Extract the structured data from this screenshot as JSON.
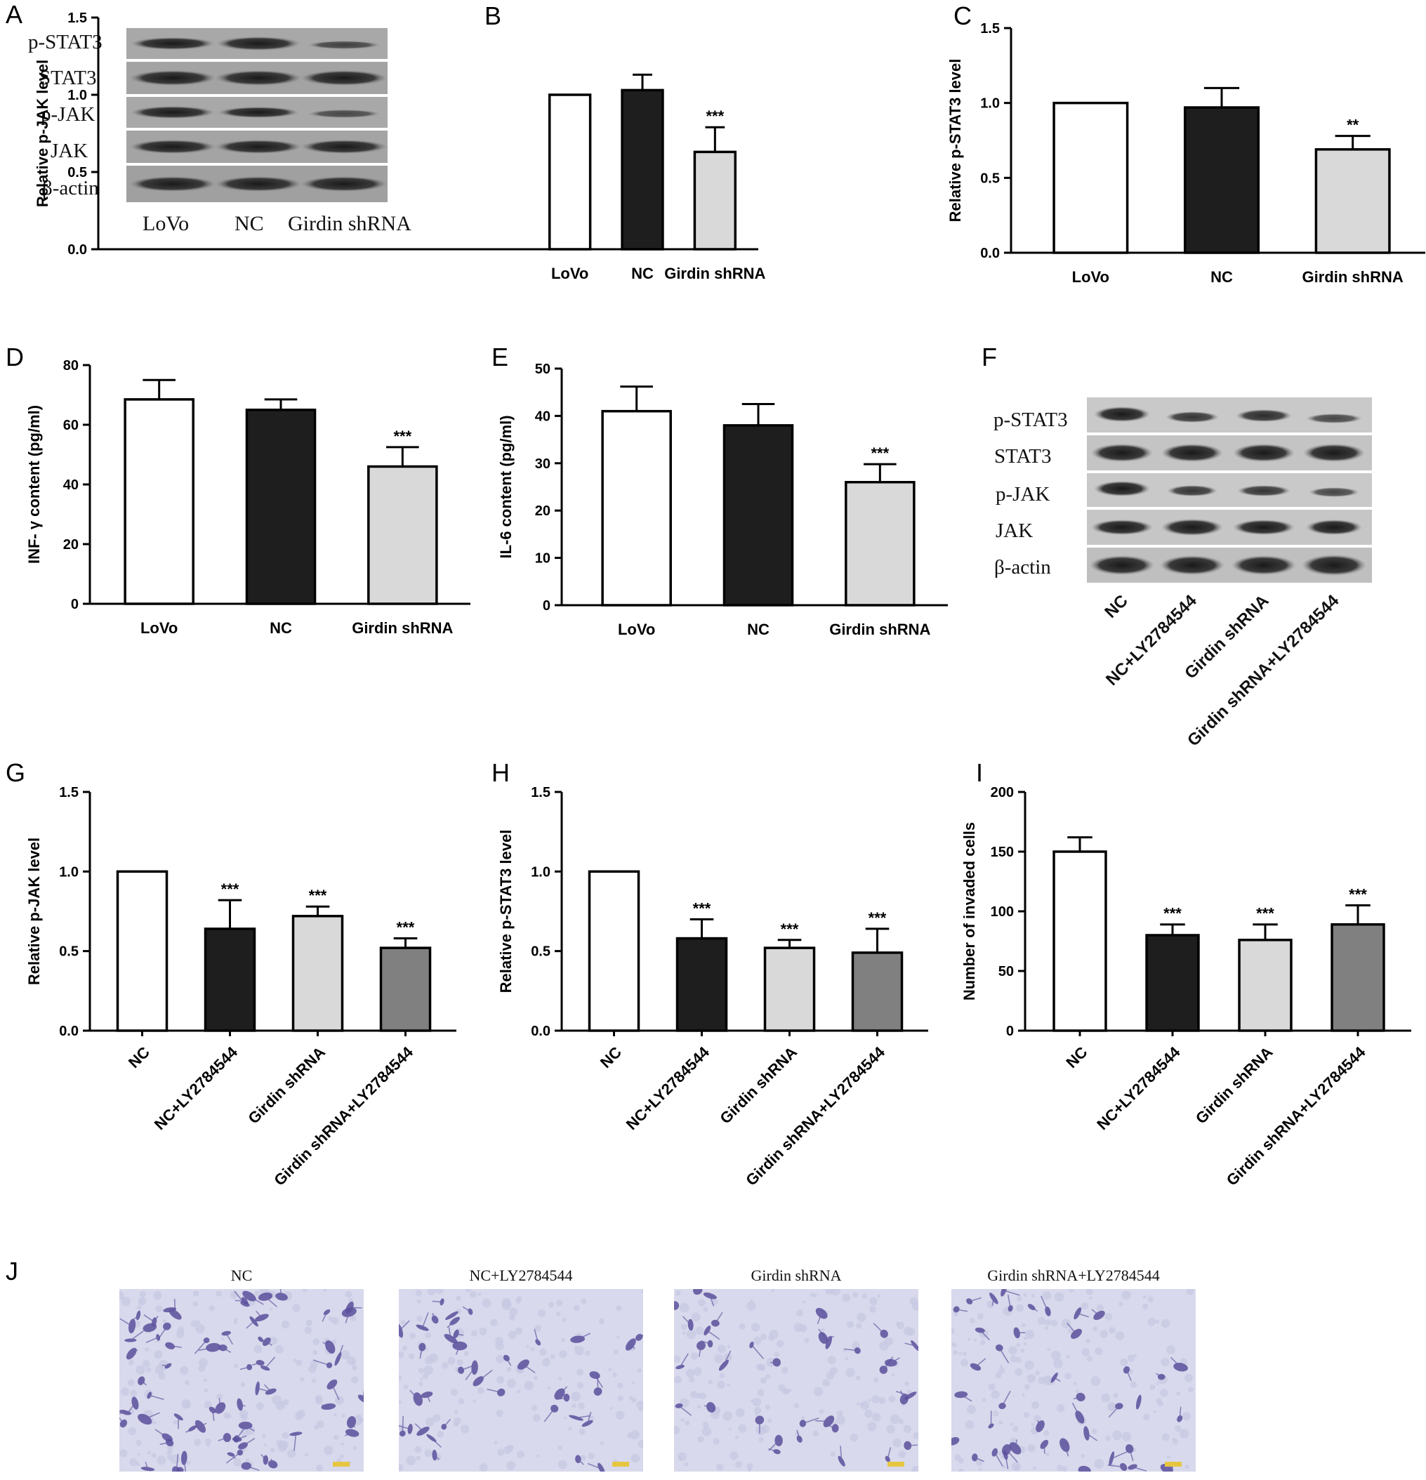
{
  "panels": {
    "A": "A",
    "B": "B",
    "C": "C",
    "D": "D",
    "E": "E",
    "F": "F",
    "G": "G",
    "H": "H",
    "I": "I",
    "J": "J"
  },
  "blot_A": {
    "rows": [
      "p-STAT3",
      "STAT3",
      "p-JAK",
      "JAK",
      "β-actin"
    ],
    "lanes": [
      "LoVo",
      "NC",
      "Girdin shRNA"
    ]
  },
  "blot_F": {
    "rows": [
      "p-STAT3",
      "STAT3",
      "p-JAK",
      "JAK",
      "β-actin"
    ],
    "lanes": [
      "NC",
      "NC+LY2784544",
      "Girdin shRNA",
      "Girdin shRNA+LY2784544"
    ]
  },
  "colors": {
    "white": "#ffffff",
    "black": "#1e1e1e",
    "light_gray": "#d9d9d9",
    "mid_gray": "#808080"
  },
  "chart_data": [
    {
      "id": "B",
      "type": "bar",
      "ylabel": "Relative p-JAK level",
      "ylim": [
        0,
        1.5
      ],
      "yticks": [
        "0.0",
        "0.5",
        "1.0",
        "1.5"
      ],
      "categories": [
        "LoVo",
        "NC",
        "Girdin shRNA"
      ],
      "values": [
        1.0,
        1.03,
        0.63
      ],
      "errors": [
        0,
        0.1,
        0.16
      ],
      "colors": [
        "#ffffff",
        "#1e1e1e",
        "#d9d9d9"
      ],
      "stars": [
        "",
        "",
        "***"
      ]
    },
    {
      "id": "C",
      "type": "bar",
      "ylabel": "Relative p-STAT3 level",
      "ylim": [
        0,
        1.5
      ],
      "yticks": [
        "0.0",
        "0.5",
        "1.0",
        "1.5"
      ],
      "categories": [
        "LoVo",
        "NC",
        "Girdin shRNA"
      ],
      "values": [
        1.0,
        0.97,
        0.69
      ],
      "errors": [
        0,
        0.13,
        0.09
      ],
      "colors": [
        "#ffffff",
        "#1e1e1e",
        "#d9d9d9"
      ],
      "stars": [
        "",
        "",
        "**"
      ]
    },
    {
      "id": "D",
      "type": "bar",
      "ylabel": "INF- γ  content (pg/ml)",
      "ylim": [
        0,
        80
      ],
      "yticks": [
        "0",
        "20",
        "40",
        "60",
        "80"
      ],
      "categories": [
        "LoVo",
        "NC",
        "Girdin  shRNA"
      ],
      "values": [
        68.5,
        65,
        46
      ],
      "errors": [
        6.5,
        3.5,
        6.5
      ],
      "colors": [
        "#ffffff",
        "#1e1e1e",
        "#d9d9d9"
      ],
      "stars": [
        "",
        "",
        "***"
      ]
    },
    {
      "id": "E",
      "type": "bar",
      "ylabel": "IL-6 content (pg/ml)",
      "ylim": [
        0,
        50
      ],
      "yticks": [
        "0",
        "10",
        "20",
        "30",
        "40",
        "50"
      ],
      "categories": [
        "LoVo",
        "NC",
        "Girdin shRNA"
      ],
      "values": [
        41,
        38,
        26
      ],
      "errors": [
        5.2,
        4.5,
        3.8
      ],
      "colors": [
        "#ffffff",
        "#1e1e1e",
        "#d9d9d9"
      ],
      "stars": [
        "",
        "",
        "***"
      ]
    },
    {
      "id": "G",
      "type": "bar",
      "ylabel": "Relative p-JAK level",
      "ylim": [
        0,
        1.5
      ],
      "yticks": [
        "0.0",
        "0.5",
        "1.0",
        "1.5"
      ],
      "categories": [
        "NC",
        "NC+LY2784544",
        "Girdin shRNA",
        "Girdin shRNA+LY2784544"
      ],
      "values": [
        1.0,
        0.64,
        0.72,
        0.52
      ],
      "errors": [
        0,
        0.18,
        0.06,
        0.06
      ],
      "colors": [
        "#ffffff",
        "#1e1e1e",
        "#d9d9d9",
        "#808080"
      ],
      "stars": [
        "",
        "***",
        "***",
        "***"
      ]
    },
    {
      "id": "H",
      "type": "bar",
      "ylabel": "Relative p-STAT3 level",
      "ylim": [
        0,
        1.5
      ],
      "yticks": [
        "0.0",
        "0.5",
        "1.0",
        "1.5"
      ],
      "categories": [
        "NC",
        "NC+LY2784544",
        "Girdin shRNA",
        "Girdin shRNA+LY2784544"
      ],
      "values": [
        1.0,
        0.58,
        0.52,
        0.49
      ],
      "errors": [
        0,
        0.12,
        0.05,
        0.15
      ],
      "colors": [
        "#ffffff",
        "#1e1e1e",
        "#d9d9d9",
        "#808080"
      ],
      "stars": [
        "",
        "***",
        "***",
        "***"
      ]
    },
    {
      "id": "I",
      "type": "bar",
      "ylabel": "Number of invaded cells",
      "ylim": [
        0,
        200
      ],
      "yticks": [
        "0",
        "50",
        "100",
        "150",
        "200"
      ],
      "categories": [
        "NC",
        "NC+LY2784544",
        "Girdin shRNA",
        "Girdin shRNA+LY2784544"
      ],
      "values": [
        150,
        80,
        76,
        89
      ],
      "errors": [
        12,
        9,
        13,
        16
      ],
      "colors": [
        "#ffffff",
        "#1e1e1e",
        "#d9d9d9",
        "#808080"
      ],
      "stars": [
        "",
        "***",
        "***",
        "***"
      ]
    }
  ],
  "micrographs": [
    "NC",
    "NC+LY2784544",
    "Girdin shRNA",
    "Girdin shRNA+LY2784544"
  ]
}
